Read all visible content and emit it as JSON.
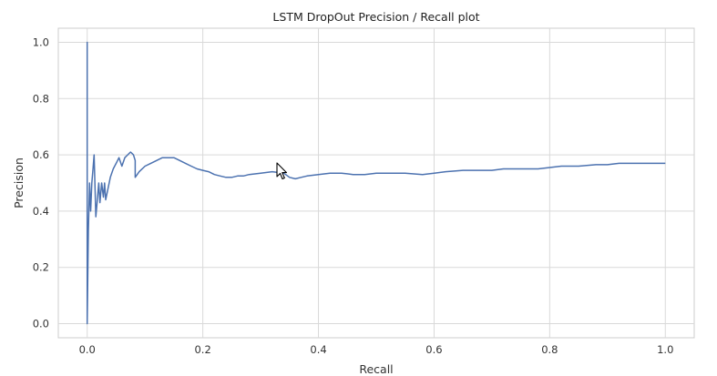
{
  "chart_data": {
    "type": "line",
    "title": "LSTM DropOut Precision / Recall plot",
    "xlabel": "Recall",
    "ylabel": "Precision",
    "xlim": [
      -0.05,
      1.05
    ],
    "ylim": [
      -0.05,
      1.05
    ],
    "xticks": [
      0.0,
      0.2,
      0.4,
      0.6,
      0.8,
      1.0
    ],
    "xtick_labels": [
      "0.0",
      "0.2",
      "0.4",
      "0.6",
      "0.8",
      "1.0"
    ],
    "yticks": [
      0.0,
      0.2,
      0.4,
      0.6,
      0.8,
      1.0
    ],
    "ytick_labels": [
      "0.0",
      "0.2",
      "0.4",
      "0.6",
      "0.8",
      "1.0"
    ],
    "grid": true,
    "series": [
      {
        "color": "#4c72b0",
        "x": [
          0.0,
          0.0,
          0.0,
          0.002,
          0.004,
          0.006,
          0.008,
          0.01,
          0.012,
          0.015,
          0.018,
          0.02,
          0.022,
          0.025,
          0.028,
          0.03,
          0.032,
          0.035,
          0.04,
          0.045,
          0.05,
          0.055,
          0.06,
          0.065,
          0.07,
          0.075,
          0.08,
          0.083,
          0.083,
          0.09,
          0.1,
          0.11,
          0.12,
          0.13,
          0.14,
          0.15,
          0.16,
          0.17,
          0.18,
          0.19,
          0.2,
          0.21,
          0.22,
          0.23,
          0.24,
          0.25,
          0.26,
          0.27,
          0.28,
          0.3,
          0.32,
          0.34,
          0.35,
          0.36,
          0.37,
          0.38,
          0.4,
          0.42,
          0.44,
          0.46,
          0.48,
          0.5,
          0.52,
          0.55,
          0.58,
          0.6,
          0.62,
          0.65,
          0.68,
          0.7,
          0.72,
          0.75,
          0.78,
          0.8,
          0.82,
          0.85,
          0.88,
          0.9,
          0.92,
          0.95,
          0.98,
          1.0
        ],
        "y": [
          0.0,
          1.0,
          0.0,
          0.33,
          0.5,
          0.4,
          0.5,
          0.55,
          0.6,
          0.38,
          0.45,
          0.5,
          0.43,
          0.5,
          0.45,
          0.5,
          0.44,
          0.47,
          0.52,
          0.55,
          0.57,
          0.59,
          0.56,
          0.59,
          0.6,
          0.61,
          0.6,
          0.58,
          0.52,
          0.54,
          0.56,
          0.57,
          0.58,
          0.59,
          0.59,
          0.59,
          0.58,
          0.57,
          0.56,
          0.55,
          0.545,
          0.54,
          0.53,
          0.525,
          0.52,
          0.52,
          0.525,
          0.525,
          0.53,
          0.535,
          0.54,
          0.535,
          0.52,
          0.515,
          0.52,
          0.525,
          0.53,
          0.535,
          0.535,
          0.53,
          0.53,
          0.535,
          0.535,
          0.535,
          0.53,
          0.535,
          0.54,
          0.545,
          0.545,
          0.545,
          0.55,
          0.55,
          0.55,
          0.555,
          0.56,
          0.56,
          0.565,
          0.565,
          0.57,
          0.57,
          0.57,
          0.57
        ]
      }
    ]
  }
}
